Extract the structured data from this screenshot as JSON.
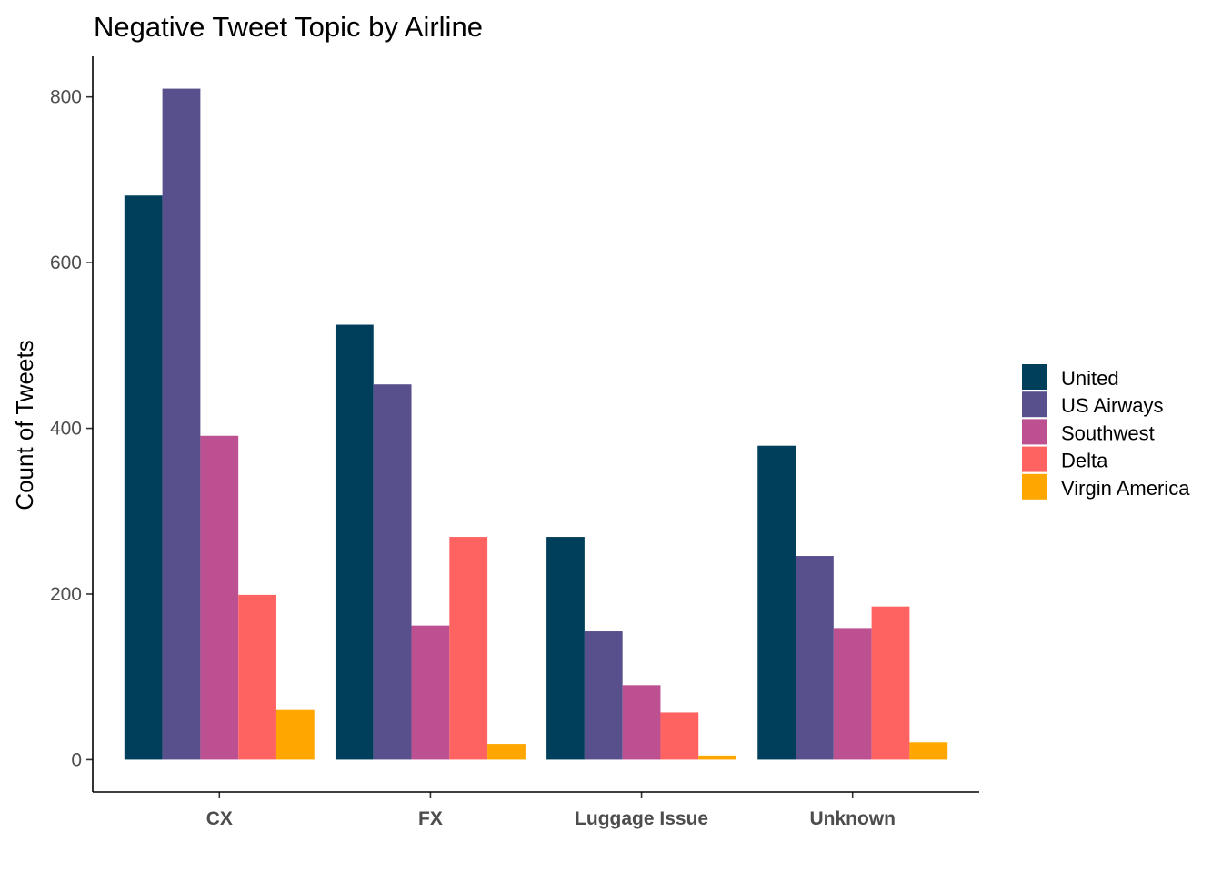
{
  "chart_data": {
    "type": "bar",
    "title": "Negative Tweet Topic by Airline",
    "xlabel": "",
    "ylabel": "Count of Tweets",
    "categories": [
      "CX",
      "FX",
      "Luggage Issue",
      "Unknown"
    ],
    "yticks": [
      0,
      200,
      400,
      600,
      800
    ],
    "ylim": [
      -39,
      849
    ],
    "grid": false,
    "legend_position": "right",
    "series": [
      {
        "name": "United",
        "color": "#003f5c",
        "values": [
          681,
          525,
          269,
          379
        ]
      },
      {
        "name": "US Airways",
        "color": "#58508d",
        "values": [
          810,
          453,
          155,
          246
        ]
      },
      {
        "name": "Southwest",
        "color": "#bc5090",
        "values": [
          391,
          162,
          90,
          159
        ]
      },
      {
        "name": "Delta",
        "color": "#ff6361",
        "values": [
          199,
          269,
          57,
          185
        ]
      },
      {
        "name": "Virgin America",
        "color": "#ffa600",
        "values": [
          60,
          19,
          5,
          21
        ]
      }
    ]
  }
}
